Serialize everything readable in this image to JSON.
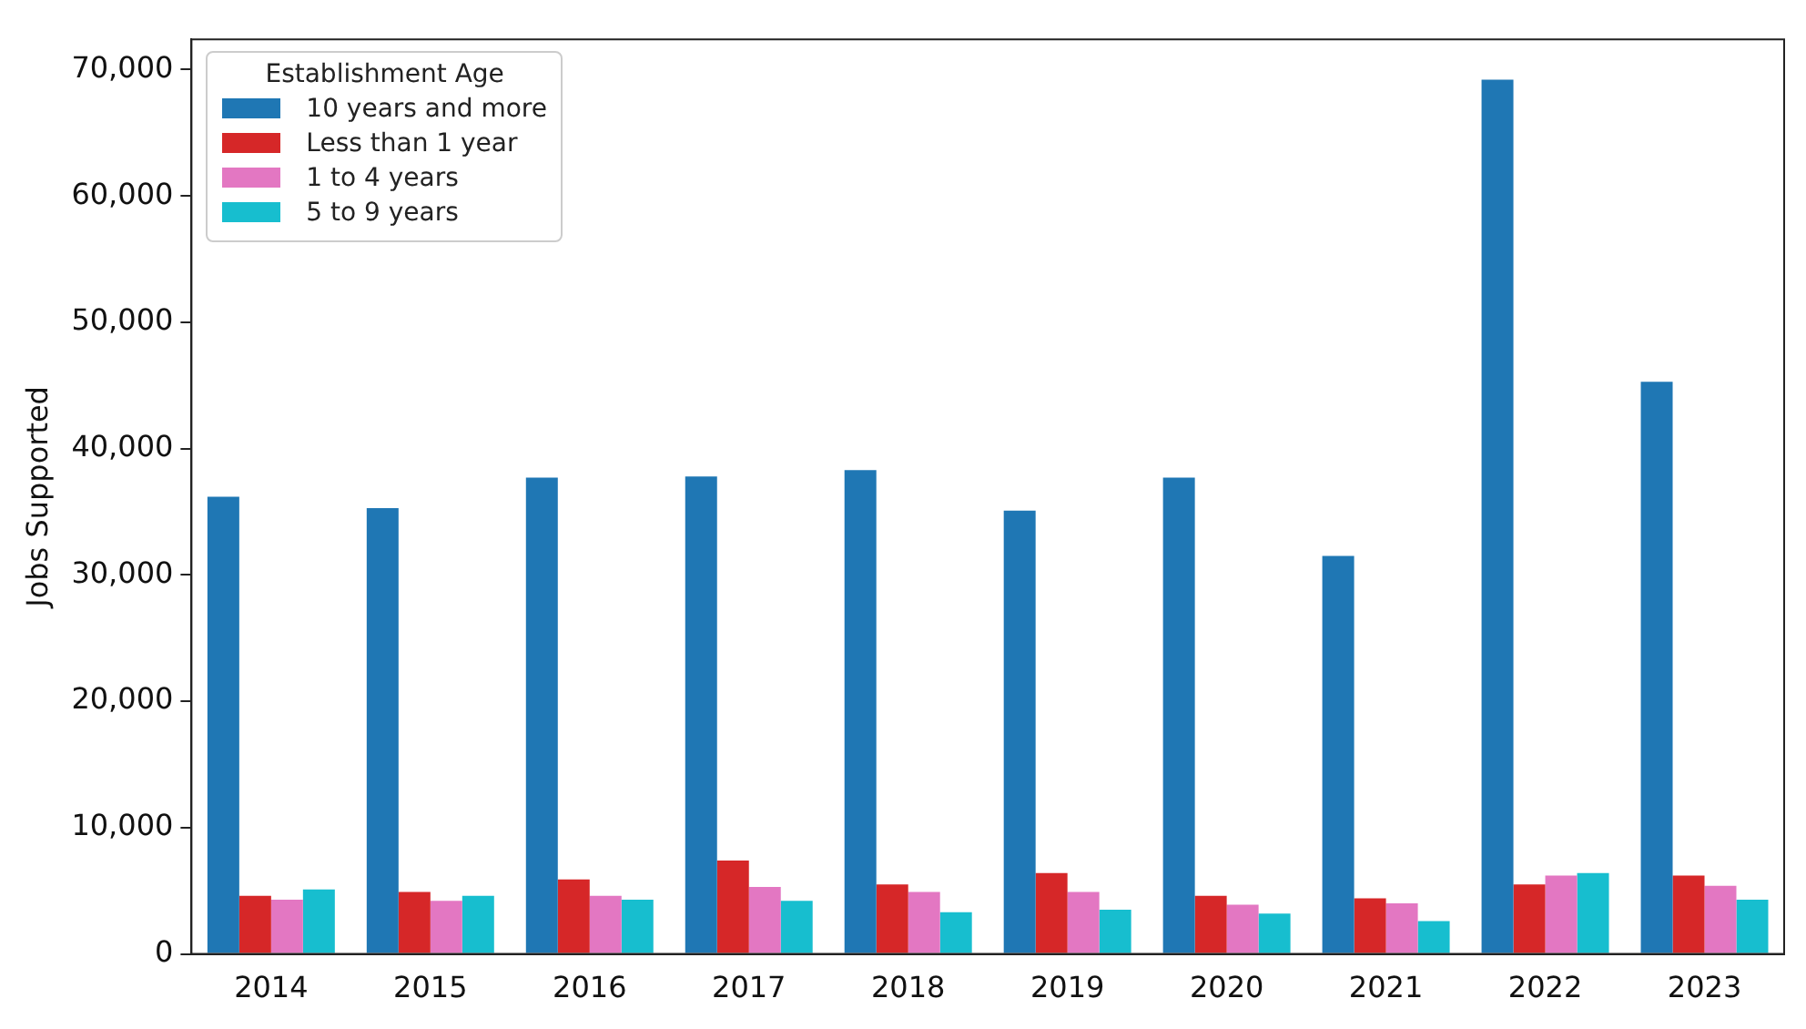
{
  "chart_data": {
    "type": "bar",
    "ylabel": "Jobs Supported",
    "legend_title": "Establishment Age",
    "legend": "top left",
    "grid": false,
    "categories": [
      "2014",
      "2015",
      "2016",
      "2017",
      "2018",
      "2019",
      "2020",
      "2021",
      "2022",
      "2023"
    ],
    "ylim": [
      0,
      72400
    ],
    "yticks": [
      0,
      {
        "value": 10000,
        "label": "10,000"
      },
      {
        "value": 20000,
        "label": "20,000"
      },
      {
        "value": 30000,
        "label": "30,000"
      },
      {
        "value": 40000,
        "label": "40,000"
      },
      {
        "value": 50000,
        "label": "50,000"
      },
      {
        "value": 60000,
        "label": "60,000"
      },
      {
        "value": 70000,
        "label": "70,000"
      }
    ],
    "series": [
      {
        "name": "10 years and more",
        "color": "#1f77b4",
        "values": [
          36200,
          35300,
          37700,
          37800,
          38300,
          35100,
          37700,
          31500,
          69200,
          45300
        ]
      },
      {
        "name": "Less than 1 year",
        "color": "#d62728",
        "values": [
          4600,
          4900,
          5900,
          7400,
          5500,
          6400,
          4600,
          4400,
          5500,
          6200
        ]
      },
      {
        "name": "1 to 4 years",
        "color": "#e377c2",
        "values": [
          4300,
          4200,
          4600,
          5300,
          4900,
          4900,
          3900,
          4000,
          6200,
          5400
        ]
      },
      {
        "name": "5 to 9 years",
        "color": "#17becf",
        "values": [
          5100,
          4600,
          4300,
          4200,
          3300,
          3500,
          3200,
          2600,
          6400,
          4300
        ]
      }
    ]
  }
}
